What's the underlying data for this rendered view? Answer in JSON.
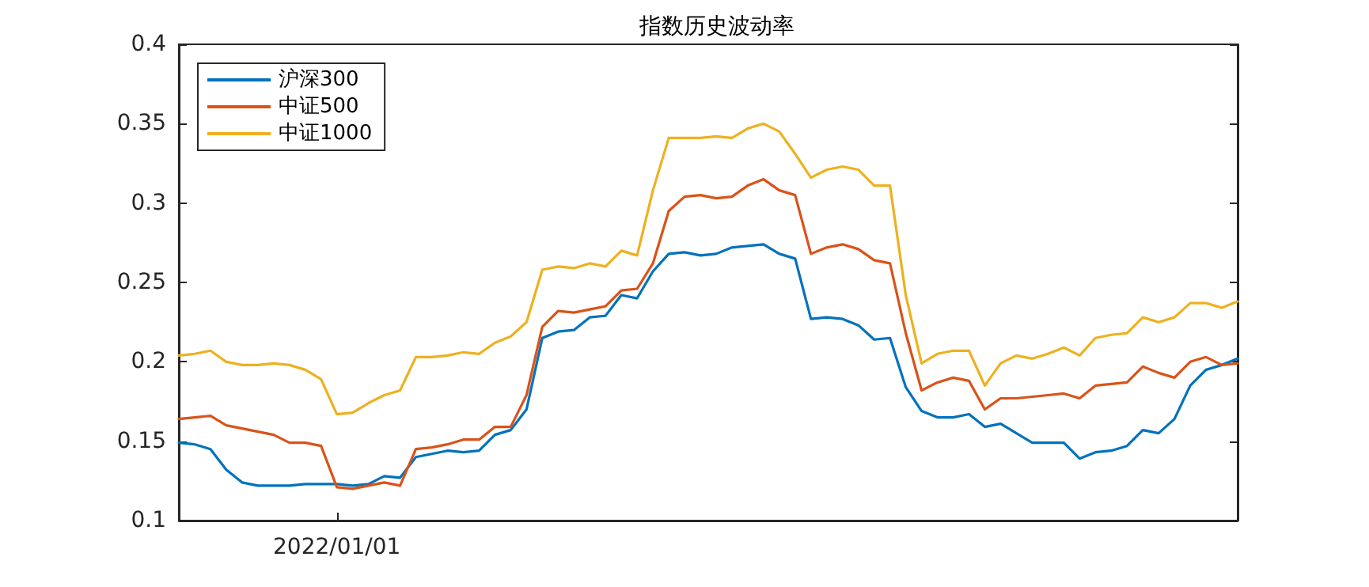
{
  "chart_data": {
    "type": "line",
    "title": "指数历史波动率",
    "categories": [
      null,
      null,
      null,
      null,
      null,
      null,
      null,
      null,
      null,
      null,
      "2022/01/01",
      null,
      null,
      null,
      null,
      null,
      null,
      null,
      null,
      null,
      null,
      null,
      null,
      null,
      null,
      null,
      null,
      null,
      null,
      null,
      null,
      null,
      null,
      null,
      null,
      null,
      null,
      null,
      null,
      null,
      null,
      null,
      null,
      null,
      null,
      null,
      null,
      null,
      null,
      null,
      null,
      null,
      null,
      null,
      null,
      null,
      null,
      null,
      null,
      null,
      null,
      null,
      null,
      null,
      null,
      null,
      null,
      null
    ],
    "series": [
      {
        "name": "沪深300",
        "color": "#0072bd",
        "values": [
          0.149,
          0.148,
          0.145,
          0.132,
          0.124,
          0.122,
          0.122,
          0.122,
          0.123,
          0.123,
          0.123,
          0.122,
          0.123,
          0.128,
          0.127,
          0.14,
          0.142,
          0.144,
          0.143,
          0.144,
          0.154,
          0.157,
          0.17,
          0.215,
          0.219,
          0.22,
          0.228,
          0.229,
          0.242,
          0.24,
          0.257,
          0.268,
          0.269,
          0.267,
          0.268,
          0.272,
          0.273,
          0.274,
          0.268,
          0.265,
          0.227,
          0.228,
          0.227,
          0.223,
          0.214,
          0.215,
          0.184,
          0.169,
          0.165,
          0.165,
          0.167,
          0.159,
          0.161,
          0.155,
          0.149,
          0.149,
          0.149,
          0.139,
          0.143,
          0.144,
          0.147,
          0.157,
          0.155,
          0.164,
          0.185,
          0.195,
          0.198,
          0.202
        ]
      },
      {
        "name": "中证500",
        "color": "#d95319",
        "values": [
          0.164,
          0.165,
          0.166,
          0.16,
          0.158,
          0.156,
          0.154,
          0.149,
          0.149,
          0.147,
          0.121,
          0.12,
          0.122,
          0.124,
          0.122,
          0.145,
          0.146,
          0.148,
          0.151,
          0.151,
          0.159,
          0.159,
          0.179,
          0.222,
          0.232,
          0.231,
          0.233,
          0.235,
          0.245,
          0.246,
          0.262,
          0.295,
          0.304,
          0.305,
          0.303,
          0.304,
          0.311,
          0.315,
          0.308,
          0.305,
          0.268,
          0.272,
          0.274,
          0.271,
          0.264,
          0.262,
          0.218,
          0.182,
          0.187,
          0.19,
          0.188,
          0.17,
          0.177,
          0.177,
          0.178,
          0.179,
          0.18,
          0.177,
          0.185,
          0.186,
          0.187,
          0.197,
          0.193,
          0.19,
          0.2,
          0.203,
          0.198,
          0.199
        ]
      },
      {
        "name": "中证1000",
        "color": "#edb120",
        "values": [
          0.204,
          0.205,
          0.207,
          0.2,
          0.198,
          0.198,
          0.199,
          0.198,
          0.195,
          0.189,
          0.167,
          0.168,
          0.174,
          0.179,
          0.182,
          0.203,
          0.203,
          0.204,
          0.206,
          0.205,
          0.212,
          0.216,
          0.225,
          0.258,
          0.26,
          0.259,
          0.262,
          0.26,
          0.27,
          0.267,
          0.308,
          0.341,
          0.341,
          0.341,
          0.342,
          0.341,
          0.347,
          0.35,
          0.345,
          0.331,
          0.316,
          0.321,
          0.323,
          0.321,
          0.311,
          0.311,
          0.242,
          0.199,
          0.205,
          0.207,
          0.207,
          0.185,
          0.199,
          0.204,
          0.202,
          0.205,
          0.209,
          0.204,
          0.215,
          0.217,
          0.218,
          0.228,
          0.225,
          0.228,
          0.237,
          0.237,
          0.234,
          0.238
        ]
      }
    ],
    "ylim": [
      0.1,
      0.4
    ],
    "yticks": [
      0.1,
      0.15,
      0.2,
      0.25,
      0.3,
      0.35,
      0.4
    ],
    "legend": "top left",
    "grid": false,
    "marker": "none",
    "line_style": "solid"
  }
}
